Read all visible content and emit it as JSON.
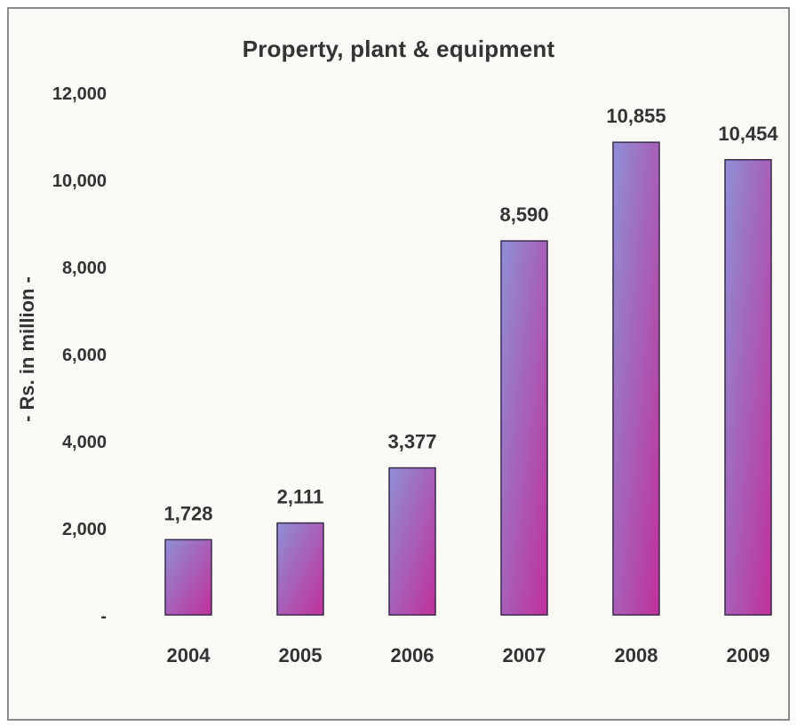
{
  "chart_data": {
    "type": "bar",
    "title": "Property, plant & equipment",
    "xlabel": "",
    "ylabel": "- Rs. in million -",
    "categories": [
      "2004",
      "2005",
      "2006",
      "2007",
      "2008",
      "2009"
    ],
    "values": [
      1728,
      2111,
      3377,
      8590,
      10855,
      10454
    ],
    "value_labels": [
      "1,728",
      "2,111",
      "3,377",
      "8,590",
      "10,855",
      "10,454"
    ],
    "yticks": [
      0,
      2000,
      4000,
      6000,
      8000,
      10000,
      12000
    ],
    "ytick_labels": [
      "-",
      "2,000",
      "4,000",
      "6,000",
      "8,000",
      "10,000",
      "12,000"
    ],
    "ylim": [
      0,
      12000
    ],
    "grid": false,
    "legend": "none",
    "colors": {
      "bar_top": "#8f8fd6",
      "bar_bottom": "#c0309a",
      "bar_outline": "#3a2a4a",
      "text": "#333333"
    }
  }
}
